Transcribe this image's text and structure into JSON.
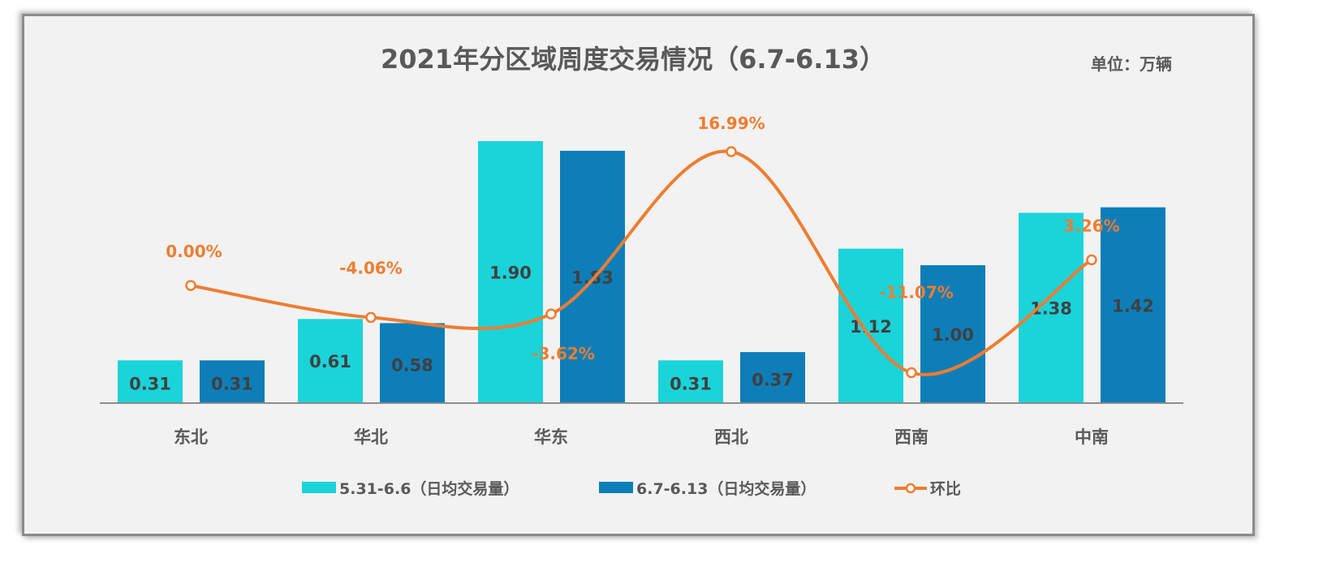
{
  "chart_data": {
    "type": "bar+line",
    "title": "2021年分区域周度交易情况（6.7-6.13）",
    "unit_label": "单位：万辆",
    "categories": [
      "东北",
      "华北",
      "华东",
      "西北",
      "西南",
      "中南"
    ],
    "series": [
      {
        "name": "5.31-6.6（日均交易量）",
        "type": "bar",
        "color": "#1ad4da",
        "values": [
          0.31,
          0.61,
          1.9,
          0.31,
          1.12,
          1.38
        ],
        "labels": [
          "0.31",
          "0.61",
          "1.90",
          "0.31",
          "1.12",
          "1.38"
        ]
      },
      {
        "name": "6.7-6.13（日均交易量）",
        "type": "bar",
        "color": "#0e7eb8",
        "values": [
          0.31,
          0.58,
          1.83,
          0.37,
          1.0,
          1.42
        ],
        "labels": [
          "0.31",
          "0.58",
          "1.83",
          "0.37",
          "1.00",
          "1.42"
        ]
      },
      {
        "name": "环比",
        "type": "line",
        "axis": "secondary",
        "color": "#ee7d31",
        "values": [
          0.0,
          -4.06,
          -3.62,
          16.99,
          -11.07,
          3.26
        ],
        "labels": [
          "0.00%",
          "-4.06%",
          "-3.62%",
          "16.99%",
          "-11.07%",
          "3.26%"
        ]
      }
    ],
    "legend_position": "bottom",
    "grid": false
  }
}
